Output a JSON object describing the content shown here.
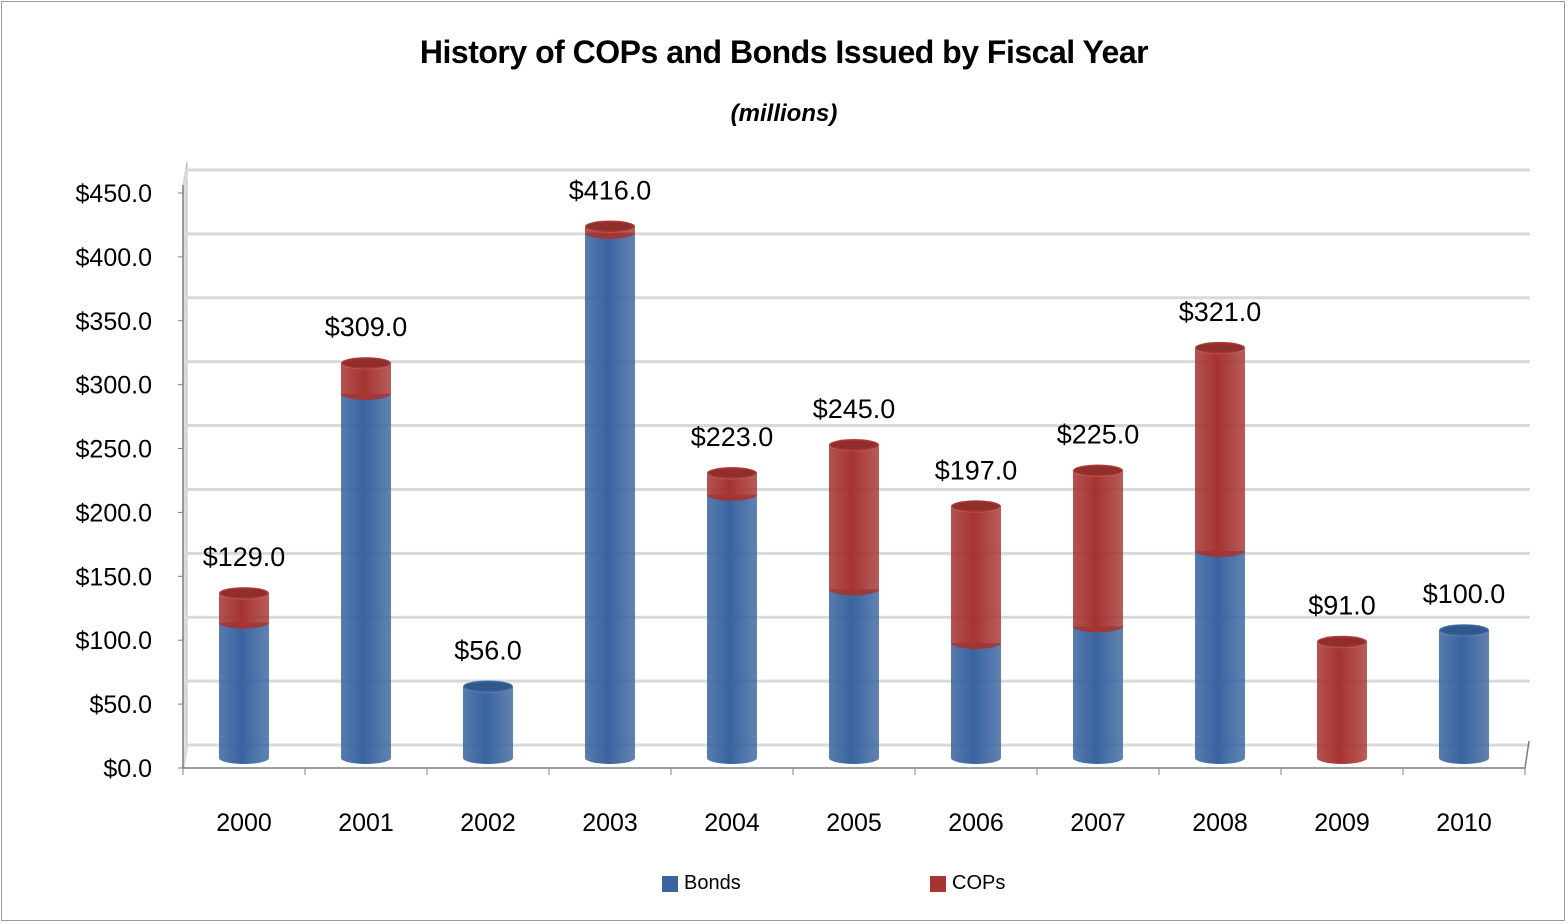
{
  "chart_data": {
    "type": "bar",
    "stacked": true,
    "title": "History of COPs and Bonds Issued by Fiscal Year",
    "subtitle": "(millions)",
    "categories": [
      "2000",
      "2001",
      "2002",
      "2003",
      "2004",
      "2005",
      "2006",
      "2007",
      "2008",
      "2009",
      "2010"
    ],
    "series": [
      {
        "name": "Bonds",
        "color": "#3A64A0",
        "values": [
          106,
          285,
          56,
          411,
          206,
          132,
          90,
          103,
          162,
          0,
          100
        ]
      },
      {
        "name": "COPs",
        "color": "#A63431",
        "values": [
          23,
          24,
          0,
          5,
          17,
          113,
          107,
          122,
          159,
          91,
          0
        ]
      }
    ],
    "totals": [
      129.0,
      309.0,
      56.0,
      416.0,
      223.0,
      245.0,
      197.0,
      225.0,
      321.0,
      91.0,
      100.0
    ],
    "total_labels": [
      "$129.0",
      "$309.0",
      "$56.0",
      "$416.0",
      "$223.0",
      "$245.0",
      "$197.0",
      "$225.0",
      "$321.0",
      "$91.0",
      "$100.0"
    ],
    "yticks": [
      0,
      50,
      100,
      150,
      200,
      250,
      300,
      350,
      400,
      450
    ],
    "ytick_labels": [
      "$0.0",
      "$50.0",
      "$100.0",
      "$150.0",
      "$200.0",
      "$250.0",
      "$300.0",
      "$350.0",
      "$400.0",
      "$450.0"
    ],
    "ylim": [
      0,
      450
    ],
    "grid": true,
    "legend": "bottom"
  }
}
